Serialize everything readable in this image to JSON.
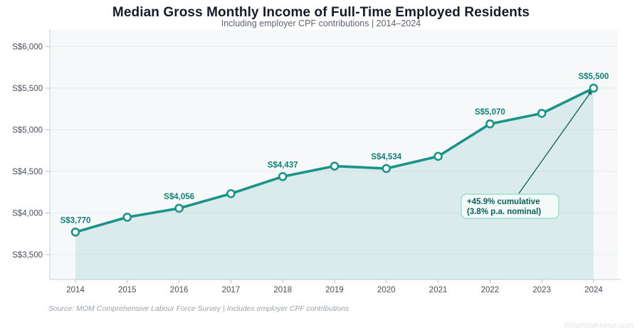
{
  "header": {
    "title": "Median Gross Monthly Income of Full-Time Employed Residents",
    "subtitle": "Including employer CPF contributions | 2014–2024"
  },
  "footer": {
    "source": "Source: MOM Comprehensive Labour Force Survey | Includes employer CPF contributions",
    "watermark": "FinancialHorse.com"
  },
  "colors": {
    "line": "#1a9488",
    "marker_fill": "#ffffff",
    "area": "rgba(26,148,136,0.12)",
    "point_label": "#0f8277",
    "annotation_text": "#0b5f58",
    "annotation_border": "#8ed8cb",
    "annotation_bg": "#f3fbf9",
    "annotation_arrow": "#116b62",
    "grid": "#e8ecef",
    "axis": "#c6cfd6",
    "tick": "#b2bcc4",
    "tick_text": "#474f5d",
    "plot_bg": "#f6f8f9",
    "title_text": "#161b29",
    "subtitle_text": "#5b6472",
    "source_text": "#9aa3ac",
    "watermark_text": "#e1e5e8"
  },
  "chart_data": {
    "type": "line",
    "x": [
      2014,
      2015,
      2016,
      2017,
      2018,
      2019,
      2020,
      2021,
      2022,
      2023,
      2024
    ],
    "values": [
      3770,
      3949,
      4056,
      4232,
      4437,
      4563,
      4534,
      4680,
      5070,
      5197,
      5500
    ],
    "point_labels": [
      "S$3,770",
      null,
      "S$4,056",
      null,
      "S$4,437",
      null,
      "S$4,534",
      null,
      "S$5,070",
      null,
      "S$5,500"
    ],
    "title": "Median Gross Monthly Income of Full-Time Employed Residents",
    "subtitle": "Including employer CPF contributions | 2014–2024",
    "xlabel": "",
    "ylabel": "",
    "yticks": [
      3500,
      4000,
      4500,
      5000,
      5500,
      6000
    ],
    "ytick_labels": [
      "S$3,500",
      "S$4,000",
      "S$4,500",
      "S$5,000",
      "S$5,500",
      "S$6,000"
    ],
    "ylim": [
      3200,
      6200
    ],
    "grid": true,
    "area_fill": true,
    "legend": "none",
    "annotation": {
      "lines": [
        "+45.9% cumulative",
        "(3.8% p.a. nominal)"
      ],
      "points_to_x": 2024
    }
  }
}
